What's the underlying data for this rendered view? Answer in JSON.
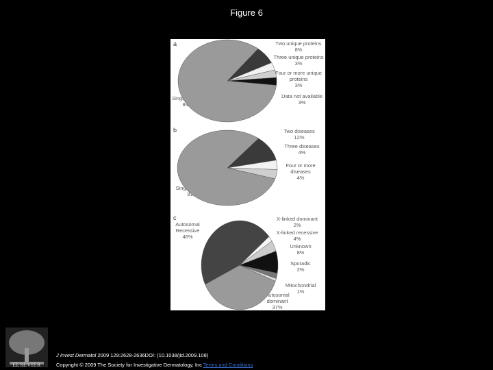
{
  "header": {
    "title": "Figure 6"
  },
  "chart_data": [
    {
      "type": "pie",
      "title": "a",
      "categories": [
        "Two unique proteins",
        "Three unique proteins",
        "Four or more unique proteins",
        "Data not available",
        "Single protein"
      ],
      "values": [
        8,
        3,
        3,
        3,
        84
      ],
      "value_labels": [
        "8%",
        "3%",
        "3%",
        "3%",
        "84%"
      ],
      "colors": [
        "#3a3a3a",
        "#f2f2f2",
        "#cfcfcf",
        "#111111",
        "#9a9a9a"
      ]
    },
    {
      "type": "pie",
      "title": "b",
      "categories": [
        "Two diseases",
        "Three diseases",
        "Four or more diseases",
        "Single disease"
      ],
      "values": [
        12,
        4,
        4,
        81
      ],
      "value_labels": [
        "12%",
        "4%",
        "4%",
        "81%"
      ],
      "colors": [
        "#3a3a3a",
        "#f2f2f2",
        "#cfcfcf",
        "#9a9a9a"
      ]
    },
    {
      "type": "pie",
      "title": "c",
      "categories": [
        "X-linked dominant",
        "X-linked recessive",
        "Unknown",
        "Sporadic",
        "Mitochondrial",
        "Autosomal dominant",
        "Autosomal Recessive"
      ],
      "values": [
        2,
        4,
        8,
        2,
        1,
        37,
        46
      ],
      "value_labels": [
        "2%",
        "4%",
        "8%",
        "2%",
        "1%",
        "37%",
        "46%"
      ],
      "colors": [
        "#f5f5f5",
        "#cccccc",
        "#111111",
        "#777777",
        "#e0e0e0",
        "#9a9a9a",
        "#444444"
      ]
    }
  ],
  "footer": {
    "journal": "J Invest Dermatol",
    "citation": "2009 129:2628-2636DOI: (10.1038/jid.2009.108)",
    "copyright": "Copyright © 2009 The Society for Investigative Dermatology, Inc",
    "link": "Terms and Conditions",
    "logo": "ELSEVIER"
  }
}
